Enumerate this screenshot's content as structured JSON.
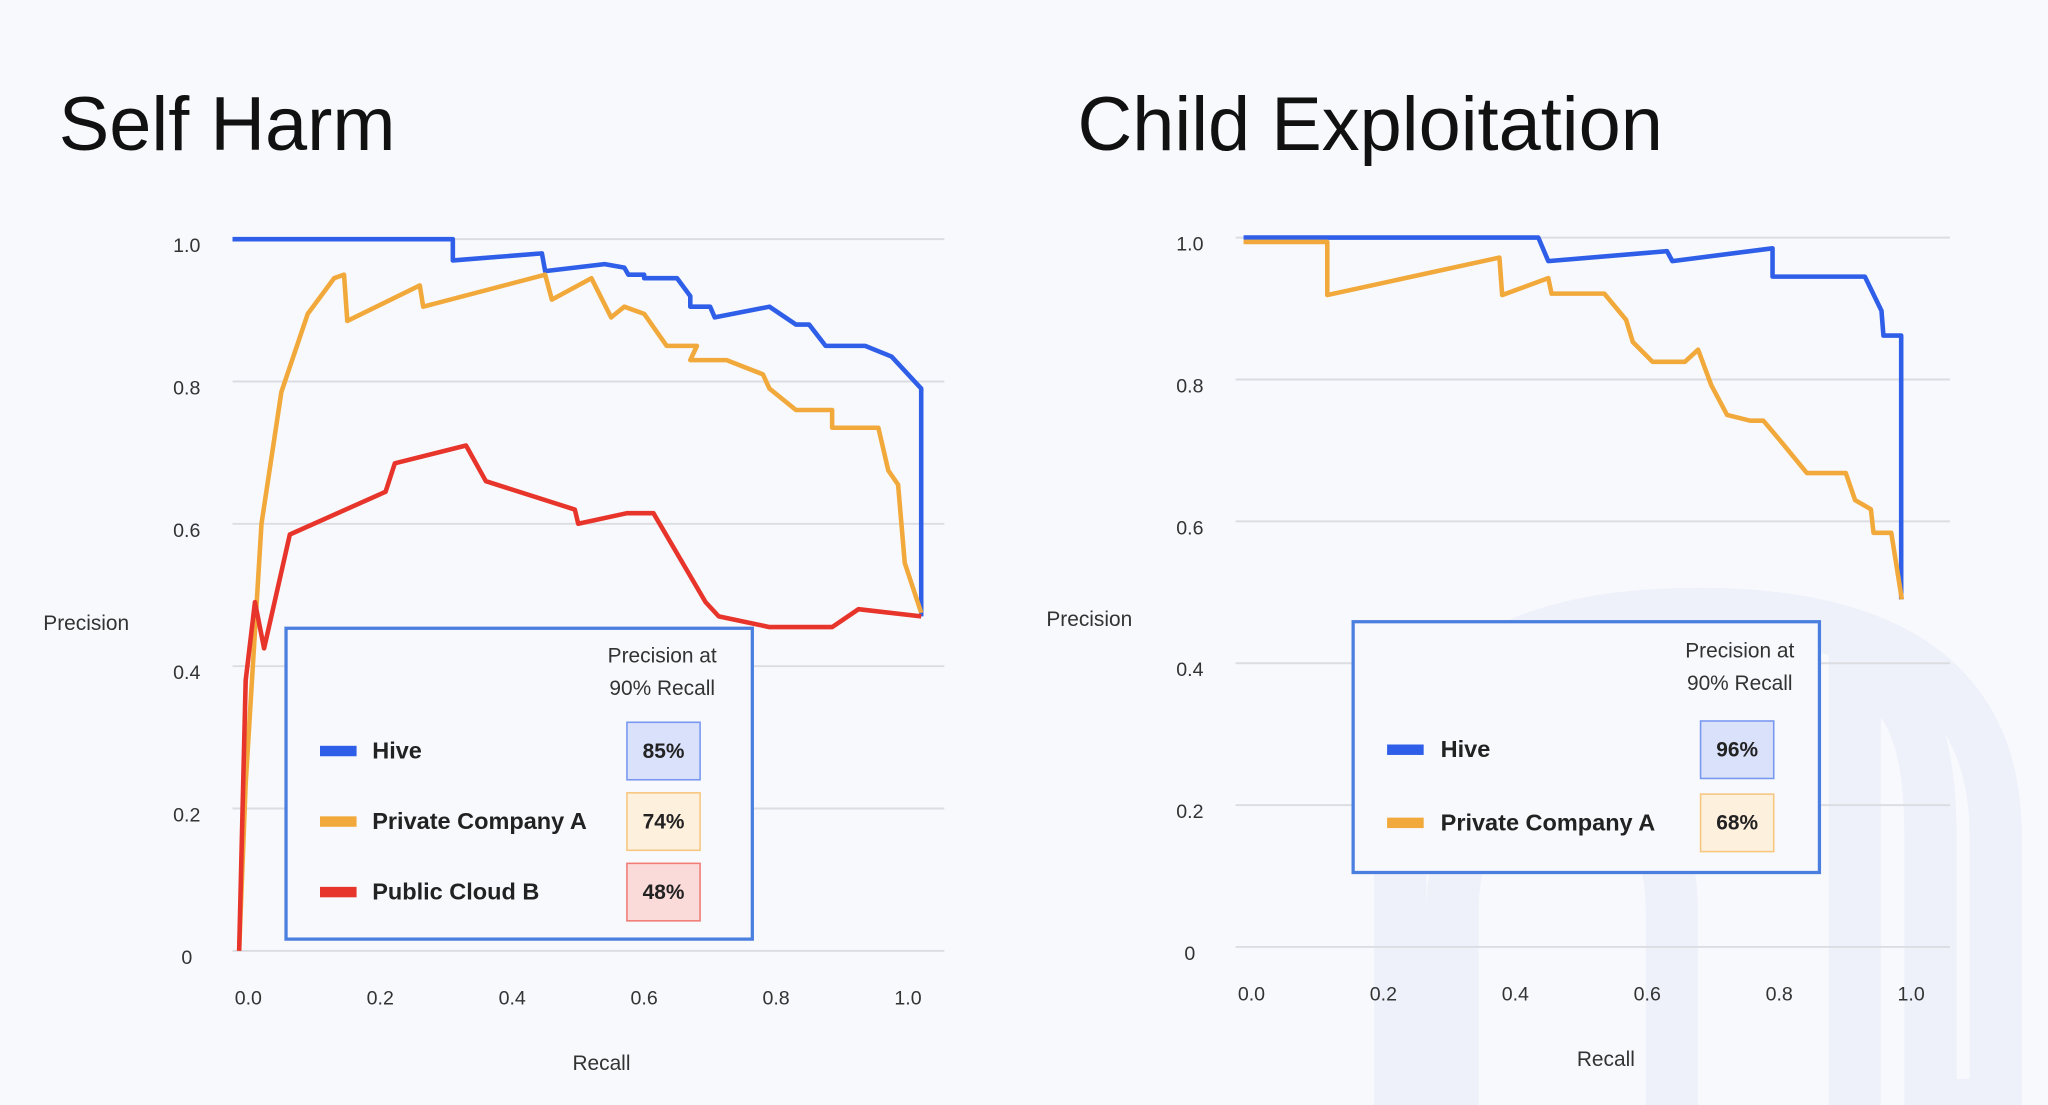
{
  "chart_data": [
    {
      "type": "line",
      "title": "Self Harm",
      "xlabel": "Recall",
      "ylabel": "Precision",
      "xlim": [
        -0.024,
        1.055
      ],
      "ylim": [
        0,
        1.024
      ],
      "xticks": [
        {
          "value": 0,
          "label": "0.0"
        },
        0.2,
        0.4,
        0.6,
        0.8,
        {
          "value": 1,
          "label": "1.0"
        }
      ],
      "yticks": [
        0,
        0.2,
        0.4,
        0.6,
        0.8,
        {
          "value": 1,
          "label": "1.0"
        }
      ],
      "grid": true,
      "series": [
        {
          "name": "Hive",
          "color": "#2f5fe8",
          "x": [
            -0.024,
            0.31,
            0.31,
            0.445,
            0.45,
            0.54,
            0.57,
            0.576,
            0.6,
            0.6,
            0.65,
            0.67,
            0.67,
            0.7,
            0.707,
            0.79,
            0.83,
            0.85,
            0.875,
            0.935,
            0.975,
            1.0,
            1.02,
            1.02
          ],
          "values": [
            1.0,
            1.0,
            0.97,
            0.98,
            0.955,
            0.965,
            0.96,
            0.95,
            0.95,
            0.945,
            0.945,
            0.92,
            0.905,
            0.905,
            0.89,
            0.905,
            0.88,
            0.88,
            0.85,
            0.85,
            0.835,
            0.81,
            0.79,
            0.47
          ]
        },
        {
          "name": "Private Company A",
          "color": "#f2a93b",
          "x": [
            -0.014,
            -0.004,
            0.02,
            0.05,
            0.09,
            0.13,
            0.145,
            0.15,
            0.26,
            0.265,
            0.45,
            0.46,
            0.52,
            0.55,
            0.57,
            0.6,
            0.634,
            0.68,
            0.67,
            0.725,
            0.78,
            0.79,
            0.83,
            0.885,
            0.885,
            0.955,
            0.97,
            0.985,
            0.995,
            1.02
          ],
          "values": [
            0,
            0.235,
            0.6,
            0.785,
            0.895,
            0.945,
            0.95,
            0.885,
            0.935,
            0.905,
            0.95,
            0.915,
            0.945,
            0.89,
            0.905,
            0.895,
            0.85,
            0.85,
            0.83,
            0.83,
            0.81,
            0.79,
            0.76,
            0.76,
            0.735,
            0.735,
            0.675,
            0.655,
            0.545,
            0.475
          ]
        },
        {
          "name": "Public Cloud B",
          "color": "#e8352b",
          "x": [
            -0.014,
            -0.004,
            0.01,
            0.024,
            0.063,
            0.208,
            0.222,
            0.33,
            0.36,
            0.495,
            0.5,
            0.574,
            0.614,
            0.693,
            0.713,
            0.79,
            0.885,
            0.925,
            1.02
          ],
          "values": [
            0,
            0.38,
            0.49,
            0.425,
            0.585,
            0.645,
            0.685,
            0.71,
            0.66,
            0.62,
            0.6,
            0.615,
            0.615,
            0.49,
            0.47,
            0.455,
            0.455,
            0.48,
            0.47
          ]
        }
      ],
      "summary": {
        "title_lines": [
          "Precision at",
          "90% Recall"
        ],
        "values": [
          85,
          74,
          48
        ],
        "value_labels": [
          "85%",
          "74%",
          "48%"
        ]
      }
    },
    {
      "type": "line",
      "title": "Child Exploitation",
      "xlabel": "Recall",
      "ylabel": "Precision",
      "xlim": [
        -0.024,
        1.059
      ],
      "ylim": [
        0,
        1.022
      ],
      "xticks": [
        {
          "value": 0,
          "label": "0.0"
        },
        0.2,
        0.4,
        0.6,
        0.8,
        {
          "value": 1,
          "label": "1.0"
        }
      ],
      "yticks": [
        0,
        0.2,
        0.4,
        0.6,
        0.8,
        {
          "value": 1,
          "label": "1.0"
        }
      ],
      "grid": true,
      "series": [
        {
          "name": "Hive",
          "color": "#2f5fe8",
          "x": [
            -0.012,
            0.435,
            0.45,
            0.63,
            0.638,
            0.79,
            0.79,
            0.93,
            0.955,
            0.958,
            0.985,
            0.985
          ],
          "values": [
            1.0,
            1.0,
            0.967,
            0.981,
            0.967,
            0.985,
            0.945,
            0.945,
            0.897,
            0.862,
            0.862,
            0.49
          ]
        },
        {
          "name": "Private Company A",
          "color": "#f2a93b",
          "x": [
            -0.012,
            0.115,
            0.115,
            0.376,
            0.38,
            0.45,
            0.455,
            0.535,
            0.568,
            0.578,
            0.608,
            0.657,
            0.677,
            0.697,
            0.721,
            0.756,
            0.776,
            0.806,
            0.842,
            0.901,
            0.915,
            0.939,
            0.943,
            0.97,
            0.986
          ],
          "values": [
            0.994,
            0.994,
            0.919,
            0.972,
            0.919,
            0.943,
            0.921,
            0.921,
            0.884,
            0.853,
            0.825,
            0.825,
            0.842,
            0.792,
            0.75,
            0.742,
            0.742,
            0.709,
            0.668,
            0.668,
            0.63,
            0.617,
            0.584,
            0.584,
            0.49
          ]
        }
      ],
      "summary": {
        "title_lines": [
          "Precision at",
          "90% Recall"
        ],
        "values": [
          96,
          68
        ],
        "value_labels": [
          "96%",
          "68%"
        ]
      }
    }
  ]
}
